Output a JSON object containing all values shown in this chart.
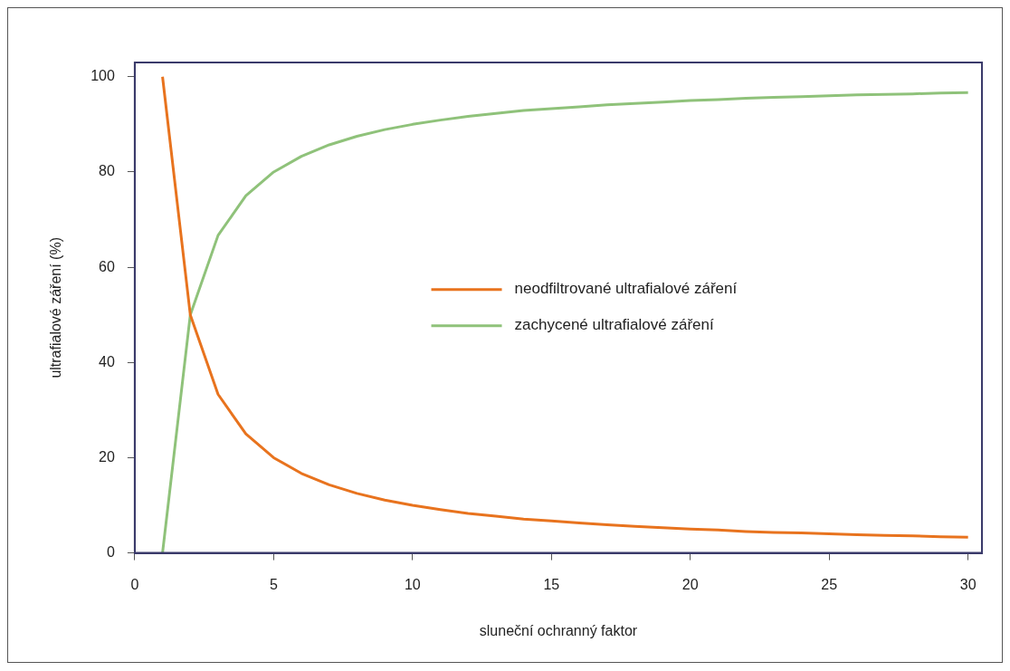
{
  "chart_data": {
    "type": "line",
    "xlabel": "sluneční ochranný faktor",
    "ylabel": "ultrafialové záření (%)",
    "x": [
      1,
      2,
      3,
      4,
      5,
      6,
      7,
      8,
      9,
      10,
      11,
      12,
      13,
      14,
      15,
      16,
      17,
      18,
      19,
      20,
      21,
      22,
      23,
      24,
      25,
      26,
      27,
      28,
      29,
      30
    ],
    "series": [
      {
        "name": "neodfiltrované ultrafialové záření",
        "color": "#e8731e",
        "values": [
          100,
          50,
          33.3,
          25,
          20,
          16.7,
          14.3,
          12.5,
          11.1,
          10,
          9.1,
          8.3,
          7.7,
          7.1,
          6.7,
          6.3,
          5.9,
          5.6,
          5.3,
          5,
          4.8,
          4.5,
          4.3,
          4.2,
          4,
          3.8,
          3.7,
          3.6,
          3.4,
          3.3
        ]
      },
      {
        "name": "zachycené ultrafialové záření",
        "color": "#8fc27a",
        "values": [
          0,
          50,
          66.7,
          75,
          80,
          83.3,
          85.7,
          87.5,
          88.9,
          90,
          90.9,
          91.7,
          92.3,
          92.9,
          93.3,
          93.7,
          94.1,
          94.4,
          94.7,
          95,
          95.2,
          95.5,
          95.7,
          95.8,
          96,
          96.2,
          96.3,
          96.4,
          96.6,
          96.7
        ]
      }
    ],
    "xlim": [
      0,
      30.5
    ],
    "xticks": [
      0,
      5,
      10,
      15,
      20,
      25,
      30
    ],
    "ylim": [
      0,
      103
    ],
    "yticks": [
      0,
      20,
      40,
      60,
      80,
      100
    ],
    "grid": false,
    "legend": "center",
    "marker": "none",
    "line_style": "solid"
  }
}
